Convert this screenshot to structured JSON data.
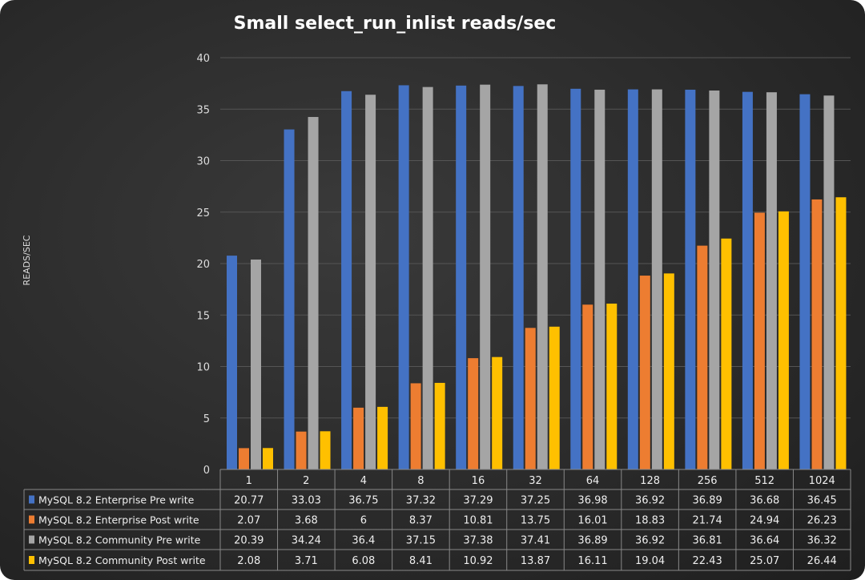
{
  "chart_data": {
    "type": "bar",
    "title": "Small select_run_inlist   reads/sec",
    "xlabel": "",
    "ylabel": "READS/SEC",
    "ylim": [
      0,
      40
    ],
    "yticks": [
      0,
      5,
      10,
      15,
      20,
      25,
      30,
      35,
      40
    ],
    "grid": true,
    "legend": "data-table-bottom",
    "categories": [
      "1",
      "2",
      "4",
      "8",
      "16",
      "32",
      "64",
      "128",
      "256",
      "512",
      "1024"
    ],
    "series": [
      {
        "name": "MySQL 8.2 Enterprise Pre write",
        "color": "#4472c4",
        "values": [
          20.77,
          33.03,
          36.75,
          37.32,
          37.29,
          37.25,
          36.98,
          36.92,
          36.89,
          36.68,
          36.45
        ]
      },
      {
        "name": "MySQL 8.2 Enterprise Post write",
        "color": "#ed7d31",
        "values": [
          2.07,
          3.68,
          6,
          8.37,
          10.81,
          13.75,
          16.01,
          18.83,
          21.74,
          24.94,
          26.23
        ]
      },
      {
        "name": "MySQL 8.2 Community Pre write",
        "color": "#a5a5a5",
        "values": [
          20.39,
          34.24,
          36.4,
          37.15,
          37.38,
          37.41,
          36.89,
          36.92,
          36.81,
          36.64,
          36.32
        ]
      },
      {
        "name": "MySQL 8.2 Community Post write",
        "color": "#ffc000",
        "values": [
          2.08,
          3.71,
          6.08,
          8.41,
          10.92,
          13.87,
          16.11,
          19.04,
          22.43,
          25.07,
          26.44
        ]
      }
    ]
  }
}
